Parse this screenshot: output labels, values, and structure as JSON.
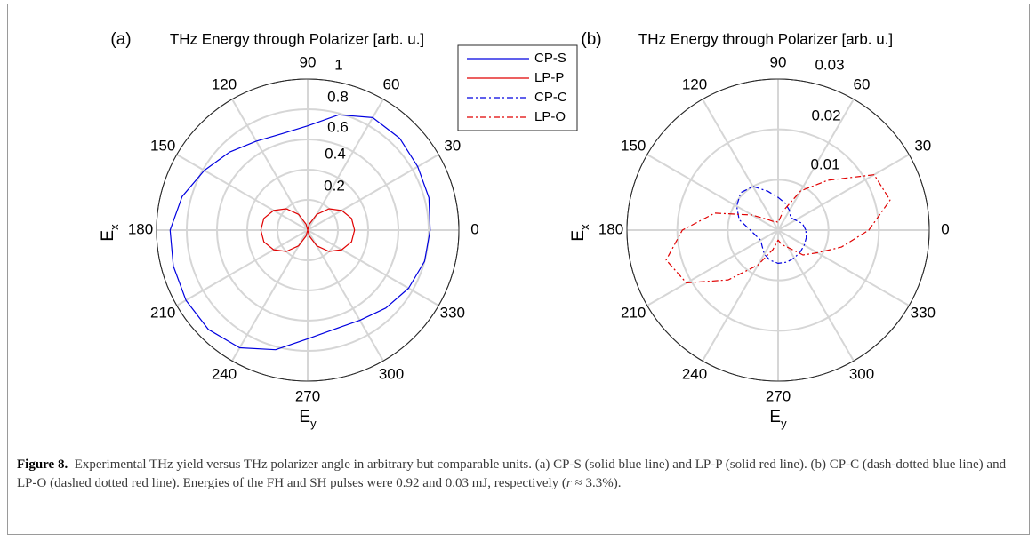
{
  "chart_data": [
    {
      "type": "polar-line",
      "panel_label": "(a)",
      "title": "THz Energy through Polarizer [arb. u.]",
      "theta_axis_label": "E_x",
      "r_axis_label": "E_y",
      "theta_ticks_deg": [
        0,
        30,
        60,
        90,
        120,
        150,
        180,
        210,
        240,
        270,
        300,
        330
      ],
      "rlim": [
        0,
        1
      ],
      "r_ticks": [
        "0.2",
        "0.4",
        "0.6",
        "0.8",
        "1"
      ],
      "grid": true,
      "legend": {
        "placement": "top-center",
        "entries": [
          {
            "label": "CP-S",
            "color": "#0000e0",
            "style": "solid"
          },
          {
            "label": "LP-P",
            "color": "#e00000",
            "style": "solid"
          },
          {
            "label": "CP-C",
            "color": "#0000e0",
            "style": "dashdot"
          },
          {
            "label": "LP-O",
            "color": "#e00000",
            "style": "dashdot"
          }
        ]
      },
      "series": [
        {
          "name": "CP-S",
          "color": "#0000e0",
          "style": "solid",
          "theta_deg": [
            0,
            15,
            30,
            45,
            60,
            75,
            90,
            105,
            120,
            135,
            150,
            165,
            180,
            195,
            210,
            225,
            240,
            255,
            270,
            285,
            300,
            315,
            330,
            345
          ],
          "r": [
            0.81,
            0.83,
            0.84,
            0.86,
            0.86,
            0.79,
            0.69,
            0.66,
            0.68,
            0.73,
            0.79,
            0.86,
            0.91,
            0.92,
            0.93,
            0.93,
            0.9,
            0.82,
            0.72,
            0.68,
            0.69,
            0.73,
            0.77,
            0.8
          ]
        },
        {
          "name": "LP-P",
          "color": "#e00000",
          "style": "solid",
          "theta_deg": [
            0,
            15,
            30,
            45,
            60,
            75,
            90,
            105,
            120,
            135,
            150,
            165,
            180,
            195,
            210,
            225,
            240,
            255,
            270,
            285,
            300,
            315,
            330,
            345
          ],
          "r": [
            0.31,
            0.3,
            0.26,
            0.2,
            0.12,
            0.04,
            0.0,
            0.04,
            0.12,
            0.2,
            0.26,
            0.3,
            0.31,
            0.3,
            0.26,
            0.2,
            0.12,
            0.04,
            0.0,
            0.04,
            0.12,
            0.2,
            0.26,
            0.3
          ]
        }
      ]
    },
    {
      "type": "polar-line",
      "panel_label": "(b)",
      "title": "THz Energy through Polarizer [arb. u.]",
      "theta_axis_label": "E_x",
      "r_axis_label": "E_y",
      "theta_ticks_deg": [
        0,
        30,
        60,
        90,
        120,
        150,
        180,
        210,
        240,
        270,
        300,
        330
      ],
      "rlim": [
        0,
        0.03
      ],
      "r_ticks": [
        "0.01",
        "0.02",
        "0.03"
      ],
      "grid": true,
      "series": [
        {
          "name": "CP-C",
          "color": "#0000e0",
          "style": "dashdot",
          "theta_deg": [
            0,
            15,
            30,
            45,
            60,
            75,
            90,
            105,
            120,
            135,
            150,
            165,
            180,
            195,
            210,
            225,
            240,
            255,
            270,
            285,
            300,
            315,
            330,
            345
          ],
          "r": [
            0.0055,
            0.005,
            0.004,
            0.0035,
            0.0045,
            0.0055,
            0.0065,
            0.008,
            0.01,
            0.0105,
            0.0095,
            0.008,
            0.0055,
            0.0045,
            0.004,
            0.0045,
            0.0055,
            0.0062,
            0.0066,
            0.0066,
            0.0064,
            0.0062,
            0.006,
            0.0058
          ]
        },
        {
          "name": "LP-O",
          "color": "#e00000",
          "style": "dashdot",
          "theta_deg": [
            0,
            15,
            30,
            45,
            60,
            75,
            90,
            105,
            120,
            135,
            150,
            165,
            180,
            195,
            210,
            225,
            240,
            255,
            270,
            285,
            300,
            315,
            330,
            345
          ],
          "r": [
            0.018,
            0.023,
            0.022,
            0.014,
            0.009,
            0.004,
            0.0015,
            0.0018,
            0.002,
            0.003,
            0.006,
            0.013,
            0.019,
            0.023,
            0.021,
            0.014,
            0.008,
            0.004,
            0.002,
            0.003,
            0.004,
            0.007,
            0.009,
            0.013
          ]
        }
      ]
    }
  ],
  "caption": {
    "label": "Figure 8.",
    "text_1": "Experimental THz yield versus THz polarizer angle in arbitrary but comparable units. (a) CP-S (solid blue line) and LP-P (solid red line). (b) CP-C (dash-dotted blue line) and LP-O (dashed dotted red line). Energies of the FH and SH pulses were 0.92 and 0.03 mJ, respectively (",
    "r_symbol": "r",
    "text_2": " ≈ 3.3%)."
  }
}
